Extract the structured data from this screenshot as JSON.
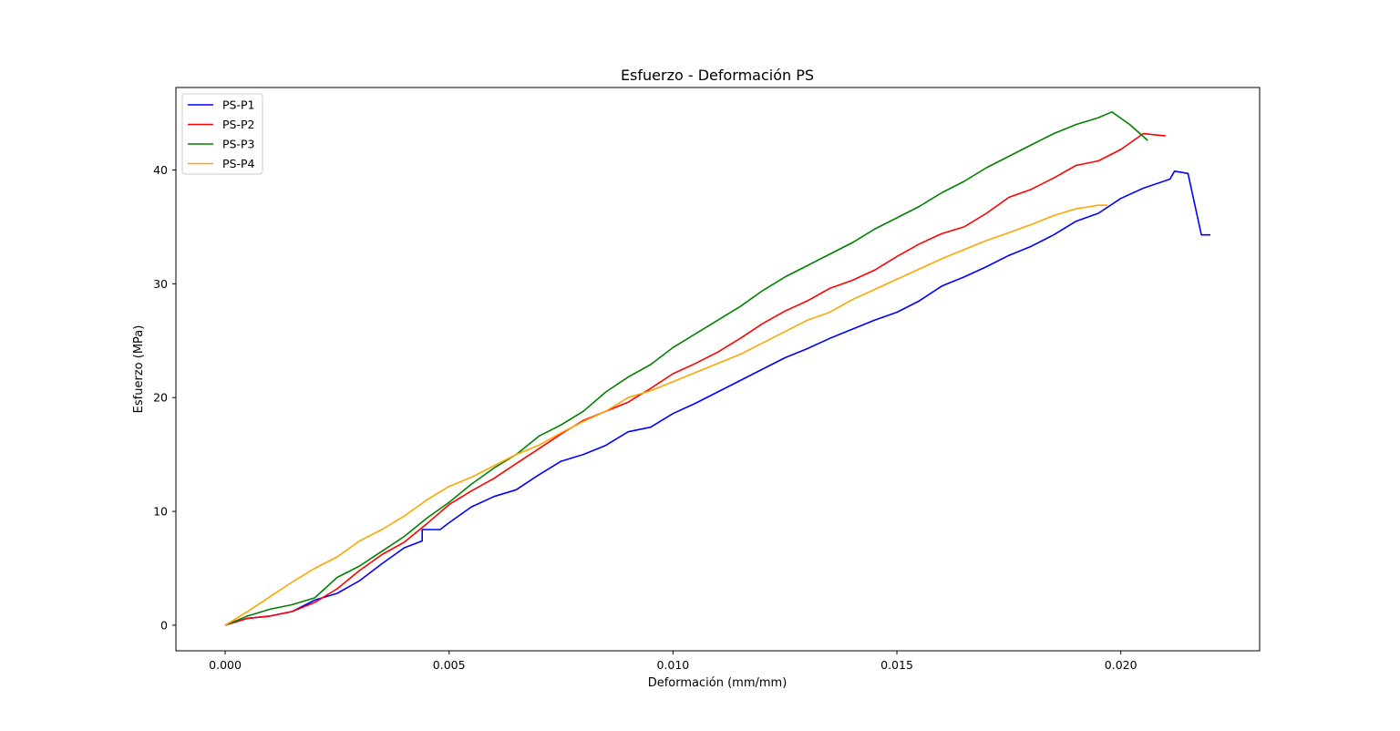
{
  "chart_data": {
    "type": "line",
    "title": "Esfuerzo - Deformación PS",
    "xlabel": "Deformación (mm/mm)",
    "ylabel": "Esfuerzo (MPa)",
    "xlim": [
      -0.0011,
      0.0231
    ],
    "ylim": [
      -2.25,
      47.25
    ],
    "xticks": [
      0.0,
      0.005,
      0.01,
      0.015,
      0.02
    ],
    "xtick_labels": [
      "0.000",
      "0.005",
      "0.010",
      "0.015",
      "0.020"
    ],
    "yticks": [
      0,
      10,
      20,
      30,
      40
    ],
    "ytick_labels": [
      "0",
      "10",
      "20",
      "30",
      "40"
    ],
    "grid": false,
    "legend_position": "upper-left",
    "series": [
      {
        "name": "PS-P1",
        "color": "#0000ff",
        "x": [
          0,
          0.0005,
          0.001,
          0.0015,
          0.002,
          0.0025,
          0.003,
          0.0035,
          0.004,
          0.0044,
          0.0044,
          0.0048,
          0.005,
          0.0055,
          0.006,
          0.0065,
          0.007,
          0.0075,
          0.008,
          0.0085,
          0.009,
          0.0095,
          0.01,
          0.0105,
          0.011,
          0.0115,
          0.012,
          0.0125,
          0.013,
          0.0135,
          0.014,
          0.0145,
          0.015,
          0.0155,
          0.016,
          0.0165,
          0.017,
          0.0175,
          0.018,
          0.0185,
          0.019,
          0.0195,
          0.02,
          0.0205,
          0.0211,
          0.0212,
          0.0215,
          0.0218,
          0.022
        ],
        "y": [
          0,
          0.6,
          0.8,
          1.2,
          2.2,
          2.8,
          3.9,
          5.4,
          6.8,
          7.4,
          8.4,
          8.4,
          9.0,
          10.4,
          11.3,
          11.9,
          13.2,
          14.4,
          15.0,
          15.8,
          17.0,
          17.4,
          18.6,
          19.5,
          20.5,
          21.5,
          22.5,
          23.5,
          24.3,
          25.2,
          26.0,
          26.8,
          27.5,
          28.5,
          29.8,
          30.6,
          31.5,
          32.5,
          33.3,
          34.3,
          35.5,
          36.2,
          37.5,
          38.4,
          39.2,
          39.9,
          39.7,
          34.3,
          34.3
        ]
      },
      {
        "name": "PS-P2",
        "color": "#ff0000",
        "x": [
          0,
          0.0005,
          0.001,
          0.0015,
          0.002,
          0.0025,
          0.003,
          0.0035,
          0.004,
          0.0045,
          0.005,
          0.0055,
          0.006,
          0.0065,
          0.007,
          0.0075,
          0.008,
          0.0085,
          0.009,
          0.0095,
          0.01,
          0.0105,
          0.011,
          0.0115,
          0.012,
          0.0125,
          0.013,
          0.0135,
          0.014,
          0.0145,
          0.015,
          0.0155,
          0.016,
          0.0165,
          0.017,
          0.0175,
          0.018,
          0.0185,
          0.019,
          0.0195,
          0.02,
          0.0205,
          0.021
        ],
        "y": [
          0,
          0.6,
          0.8,
          1.2,
          2.0,
          3.2,
          4.8,
          6.2,
          7.3,
          8.9,
          10.6,
          11.8,
          12.9,
          14.2,
          15.5,
          16.8,
          18.0,
          18.8,
          19.6,
          20.8,
          22.1,
          23.0,
          24.0,
          25.2,
          26.5,
          27.6,
          28.5,
          29.6,
          30.3,
          31.2,
          32.4,
          33.5,
          34.4,
          35.0,
          36.2,
          37.6,
          38.3,
          39.3,
          40.4,
          40.8,
          41.8,
          43.2,
          43.0
        ]
      },
      {
        "name": "PS-P3",
        "color": "#008000",
        "x": [
          0,
          0.0005,
          0.001,
          0.0015,
          0.002,
          0.0025,
          0.003,
          0.0035,
          0.004,
          0.0045,
          0.005,
          0.0055,
          0.006,
          0.0065,
          0.007,
          0.0075,
          0.008,
          0.0085,
          0.009,
          0.0095,
          0.01,
          0.0105,
          0.011,
          0.0115,
          0.012,
          0.0125,
          0.013,
          0.0135,
          0.014,
          0.0145,
          0.015,
          0.0155,
          0.016,
          0.0165,
          0.017,
          0.0175,
          0.018,
          0.0185,
          0.019,
          0.0195,
          0.0198,
          0.0202,
          0.0206
        ],
        "y": [
          0,
          0.8,
          1.4,
          1.8,
          2.4,
          4.2,
          5.2,
          6.5,
          7.8,
          9.4,
          10.8,
          12.4,
          13.8,
          15.0,
          16.6,
          17.6,
          18.8,
          20.5,
          21.8,
          22.9,
          24.4,
          25.6,
          26.8,
          28.0,
          29.4,
          30.6,
          31.6,
          32.6,
          33.6,
          34.8,
          35.8,
          36.8,
          38.0,
          39.0,
          40.2,
          41.2,
          42.2,
          43.2,
          44.0,
          44.6,
          45.1,
          44.0,
          42.6
        ]
      },
      {
        "name": "PS-P4",
        "color": "#ffa500",
        "x": [
          0,
          0.0005,
          0.001,
          0.0015,
          0.002,
          0.0025,
          0.003,
          0.0035,
          0.004,
          0.0045,
          0.005,
          0.0055,
          0.006,
          0.0065,
          0.007,
          0.0075,
          0.008,
          0.0085,
          0.009,
          0.0095,
          0.01,
          0.0105,
          0.011,
          0.0115,
          0.012,
          0.0125,
          0.013,
          0.0135,
          0.014,
          0.0145,
          0.015,
          0.0155,
          0.016,
          0.0165,
          0.017,
          0.0175,
          0.018,
          0.0185,
          0.019,
          0.0195,
          0.0197
        ],
        "y": [
          0,
          1.2,
          2.5,
          3.8,
          5.0,
          6.0,
          7.4,
          8.4,
          9.6,
          11.0,
          12.2,
          13.0,
          14.0,
          15.0,
          15.8,
          16.9,
          17.9,
          18.8,
          20.0,
          20.6,
          21.4,
          22.2,
          23.0,
          23.8,
          24.8,
          25.8,
          26.8,
          27.5,
          28.6,
          29.5,
          30.4,
          31.3,
          32.2,
          33.0,
          33.8,
          34.5,
          35.2,
          36.0,
          36.6,
          36.9,
          36.9
        ]
      }
    ]
  }
}
